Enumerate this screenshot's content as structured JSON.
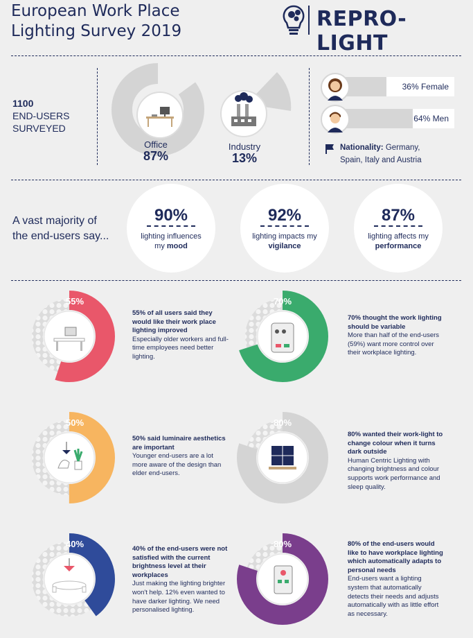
{
  "header": {
    "title_line1": "European Work Place",
    "title_line2": "Lighting Survey 2019",
    "brand": "REPRO-LIGHT"
  },
  "survey": {
    "count": "1100",
    "line1": "END-USERS",
    "line2": "SURVEYED"
  },
  "sectors": [
    {
      "label": "Office",
      "percent": "87%",
      "value": 87
    },
    {
      "label": "Industry",
      "percent": "13%",
      "value": 13
    }
  ],
  "gender": [
    {
      "label": "36% Female",
      "value": 36
    },
    {
      "label": "64% Men",
      "value": 64
    }
  ],
  "nationality": {
    "label": "Nationality:",
    "value_line1": "Germany,",
    "value_line2": "Spain, Italy and Austria"
  },
  "majority": {
    "line1": "A vast majority of",
    "line2": "the end-users say...",
    "stats": [
      {
        "percent": "90%",
        "text1": "lighting influences",
        "text2": "my",
        "bold": "mood"
      },
      {
        "percent": "92%",
        "text1": "lighting impacts my",
        "text2": "",
        "bold": "vigilance"
      },
      {
        "percent": "87%",
        "text1": "lighting affects my",
        "text2": "",
        "bold": "performance"
      }
    ]
  },
  "findings": [
    {
      "percent": "55%",
      "value": 55,
      "color": "#e9576a",
      "heading": "55% of all users said they would like their work place lighting improved",
      "body": "Especially older workers and full-time employees need better lighting."
    },
    {
      "percent": "70%",
      "value": 70,
      "color": "#3aab6d",
      "heading": "70% thought the work lighting should be variable",
      "body": "More than half of the end-users (59%) want more control over their workplace lighting."
    },
    {
      "percent": "50%",
      "value": 50,
      "color": "#f7b560",
      "heading": "50% said luminaire aesthetics are important",
      "body": "Younger end-users are a lot more aware of the design than elder end-users."
    },
    {
      "percent": "80%",
      "value": 80,
      "color": "#d4d4d4",
      "heading": "80% wanted their work-light to change colour when it turns dark outside",
      "body": "Human Centric Lighting with changing brightness and colour supports work performance and sleep quality."
    },
    {
      "percent": "40%",
      "value": 40,
      "color": "#2f4b9a",
      "heading": "40% of the end-users were not satisfied with the current brightness level at their workplaces",
      "body": "Just making the lighting brighter won't help. 12% even wanted to have darker lighting. We need personalised lighting."
    },
    {
      "percent": "80%",
      "value": 80,
      "color": "#7a3e8c",
      "heading": "80% of the end-users would like to have workplace lighting which automatically adapts to personal needs",
      "body": "End-users want a lighting system that automatically detects their needs and adjusts automatically with as little effort as necessary."
    }
  ]
}
